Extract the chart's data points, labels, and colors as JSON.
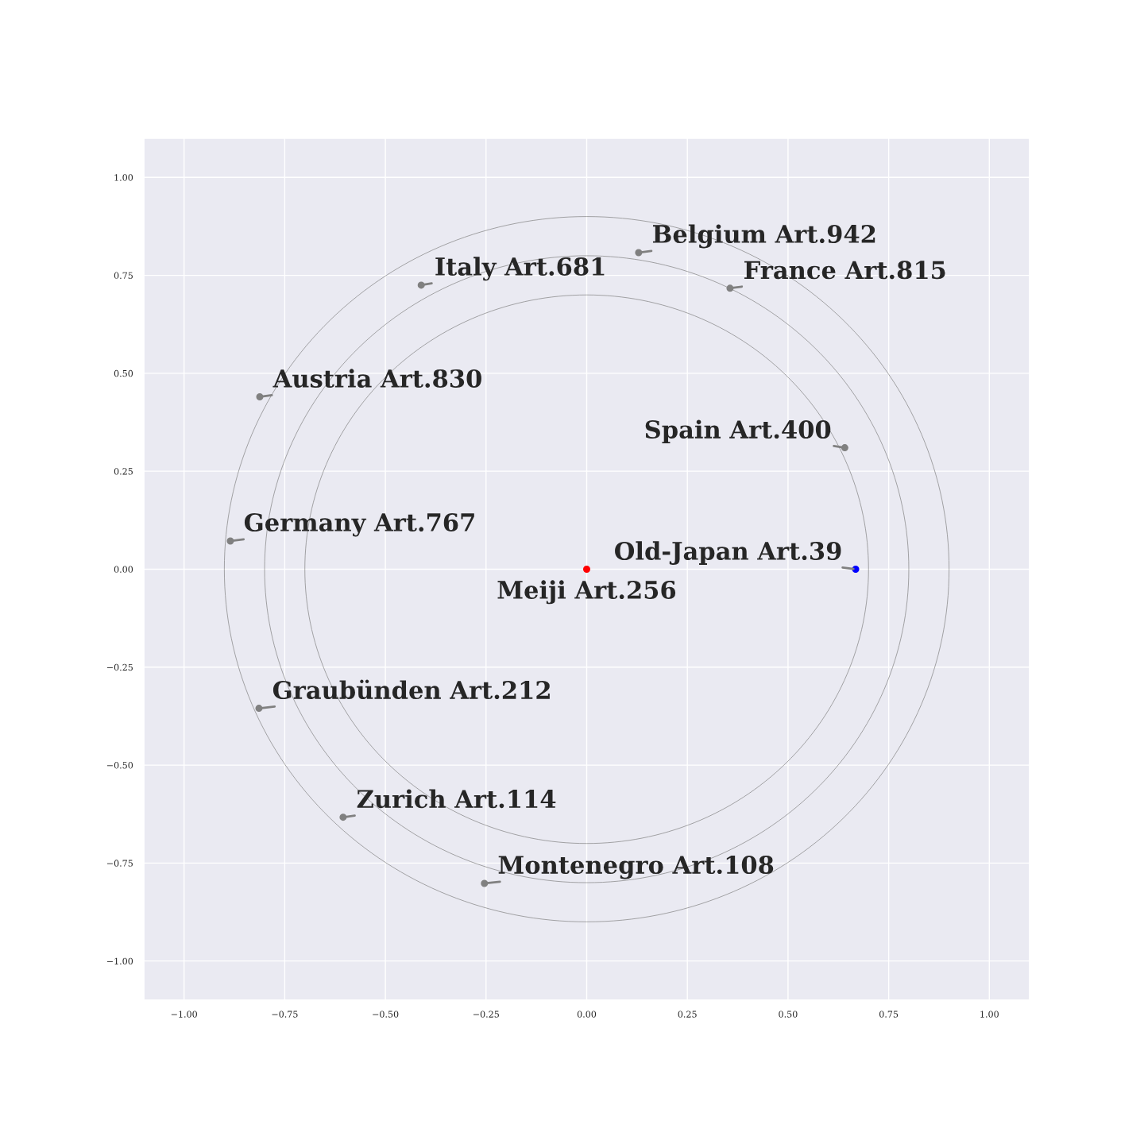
{
  "chart_data": {
    "type": "scatter",
    "xlim": [
      -1.1,
      1.1
    ],
    "ylim": [
      -1.1,
      1.1
    ],
    "xticks": [
      {
        "value": -1.0,
        "label": "−1.00"
      },
      {
        "value": -0.75,
        "label": "−0.75"
      },
      {
        "value": -0.5,
        "label": "−0.50"
      },
      {
        "value": -0.25,
        "label": "−0.25"
      },
      {
        "value": 0,
        "label": "0.00"
      },
      {
        "value": 0.25,
        "label": "0.25"
      },
      {
        "value": 0.5,
        "label": "0.50"
      },
      {
        "value": 0.75,
        "label": "0.75"
      },
      {
        "value": 1.0,
        "label": "1.00"
      }
    ],
    "yticks": [
      {
        "value": -1.0,
        "label": "−1.00"
      },
      {
        "value": -0.75,
        "label": "−0.75"
      },
      {
        "value": -0.5,
        "label": "−0.50"
      },
      {
        "value": -0.25,
        "label": "−0.25"
      },
      {
        "value": 0,
        "label": "0.00"
      },
      {
        "value": 0.25,
        "label": "0.25"
      },
      {
        "value": 0.5,
        "label": "0.50"
      },
      {
        "value": 0.75,
        "label": "0.75"
      },
      {
        "value": 1.0,
        "label": "1.00"
      }
    ],
    "grid": true,
    "marker": "circle",
    "series": [
      {
        "x": [
          0,
          0.668,
          0.641,
          0.356,
          0.129,
          -0.411,
          -0.812,
          -0.885,
          -0.814,
          -0.605,
          -0.254
        ],
        "values": [
          0,
          0,
          0.31,
          0.717,
          0.808,
          0.725,
          0.44,
          0.072,
          -0.355,
          -0.633,
          -0.802
        ],
        "colors": [
          "#ff0000",
          "#0000ff",
          "#808080",
          "#808080",
          "#808080",
          "#808080",
          "#808080",
          "#808080",
          "#808080",
          "#808080",
          "#808080"
        ]
      }
    ],
    "annotations": [
      {
        "text": "Meiji Art.256",
        "x": 0,
        "y": 0
      },
      {
        "text": "Old-Japan Art.39",
        "x": 0.668,
        "y": 0
      },
      {
        "text": "Spain Art.400",
        "x": 0.641,
        "y": 0.31
      },
      {
        "text": "France Art.815",
        "x": 0.356,
        "y": 0.717
      },
      {
        "text": "Belgium Art.942",
        "x": 0.129,
        "y": 0.808
      },
      {
        "text": "Italy Art.681",
        "x": -0.411,
        "y": 0.725
      },
      {
        "text": "Austria Art.830",
        "x": -0.812,
        "y": 0.44
      },
      {
        "text": "Germany Art.767",
        "x": -0.885,
        "y": 0.072
      },
      {
        "text": "Graubünden Art.212",
        "x": -0.814,
        "y": -0.355
      },
      {
        "text": "Zurich Art.114",
        "x": -0.605,
        "y": -0.633
      },
      {
        "text": "Montenegro Art.108",
        "x": -0.254,
        "y": -0.802
      }
    ]
  }
}
